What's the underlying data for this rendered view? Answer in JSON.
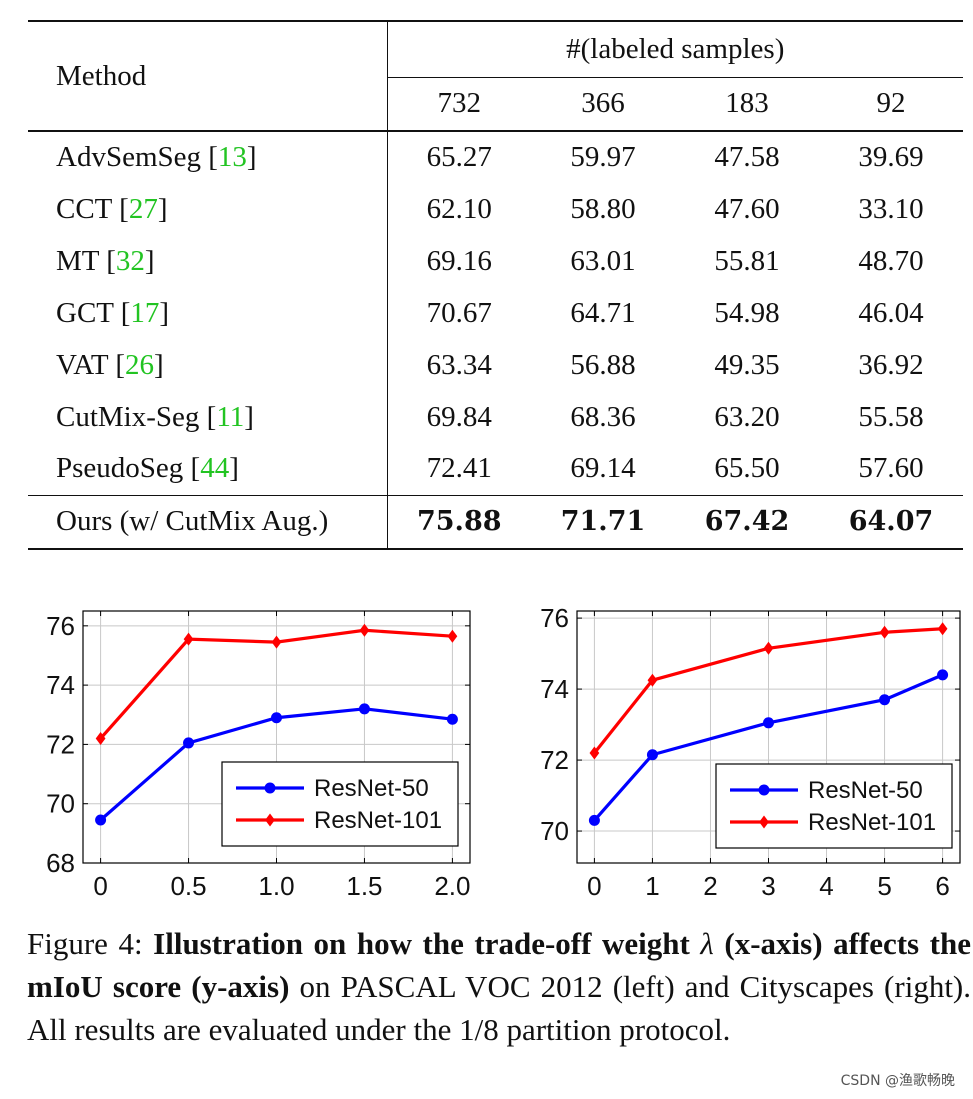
{
  "table": {
    "method_header": "Method",
    "group_header": "#(labeled samples)",
    "columns": [
      "732",
      "366",
      "183",
      "92"
    ],
    "rows": [
      {
        "name": "AdvSemSeg",
        "ref": "13",
        "values": [
          "65.27",
          "59.97",
          "47.58",
          "39.69"
        ]
      },
      {
        "name": "CCT",
        "ref": "27",
        "values": [
          "62.10",
          "58.80",
          "47.60",
          "33.10"
        ]
      },
      {
        "name": "MT",
        "ref": "32",
        "values": [
          "69.16",
          "63.01",
          "55.81",
          "48.70"
        ]
      },
      {
        "name": "GCT",
        "ref": "17",
        "values": [
          "70.67",
          "64.71",
          "54.98",
          "46.04"
        ]
      },
      {
        "name": "VAT",
        "ref": "26",
        "values": [
          "63.34",
          "56.88",
          "49.35",
          "36.92"
        ]
      },
      {
        "name": "CutMix-Seg",
        "ref": "11",
        "values": [
          "69.84",
          "68.36",
          "63.20",
          "55.58"
        ]
      },
      {
        "name": "PseudoSeg",
        "ref": "44",
        "values": [
          "72.41",
          "69.14",
          "65.50",
          "57.60"
        ]
      }
    ],
    "ours": {
      "name": "Ours (w/ CutMix Aug.)",
      "values": [
        "75.88",
        "71.71",
        "67.42",
        "64.07"
      ]
    }
  },
  "chart_data": [
    {
      "type": "line",
      "x": [
        0,
        0.5,
        1.0,
        1.5,
        2.0
      ],
      "xticks": [
        "0",
        "0.5",
        "1.0",
        "1.5",
        "2.0"
      ],
      "yticks": [
        "68",
        "70",
        "72",
        "74",
        "76"
      ],
      "ylim": [
        68,
        76.5
      ],
      "xlim": [
        -0.1,
        2.1
      ],
      "grid": true,
      "legend_position": "bottom-right",
      "series": [
        {
          "name": "ResNet-50",
          "values": [
            69.45,
            72.05,
            72.9,
            73.2,
            72.85
          ],
          "color": "#0000ff",
          "marker": "circle"
        },
        {
          "name": "ResNet-101",
          "values": [
            72.2,
            75.55,
            75.45,
            75.85,
            75.65
          ],
          "color": "#ff0000",
          "marker": "diamond"
        }
      ]
    },
    {
      "type": "line",
      "x": [
        0,
        1,
        2,
        3,
        4,
        5,
        6
      ],
      "xticks": [
        "0",
        "1",
        "2",
        "3",
        "4",
        "5",
        "6"
      ],
      "yticks": [
        "70",
        "72",
        "74",
        "76"
      ],
      "ylim": [
        69.1,
        76.2
      ],
      "xlim": [
        -0.3,
        6.3
      ],
      "grid": true,
      "legend_position": "bottom-right",
      "series": [
        {
          "name": "ResNet-50",
          "x": [
            0,
            1,
            3,
            5,
            6
          ],
          "values": [
            70.3,
            72.15,
            73.05,
            73.7,
            74.4
          ],
          "color": "#0000ff",
          "marker": "circle"
        },
        {
          "name": "ResNet-101",
          "x": [
            0,
            1,
            3,
            5,
            6
          ],
          "values": [
            72.2,
            74.25,
            75.15,
            75.6,
            75.7
          ],
          "color": "#ff0000",
          "marker": "diamond"
        }
      ]
    }
  ],
  "caption": {
    "prefix": "Figure 4: ",
    "bold_part1": "Illustration on how the trade-off weight ",
    "lambda": "λ",
    "bold_part2": " (x-axis) affects the mIoU score (y-axis)",
    "rest": " on PASCAL VOC 2012 (left) and Cityscapes (right). All results are evaluated under the 1/8 partition protocol."
  },
  "watermark": "CSDN @渔歌畅晚"
}
